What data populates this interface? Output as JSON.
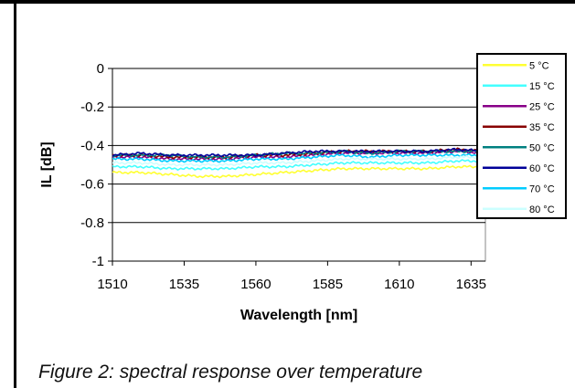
{
  "caption": "Figure 2: spectral response over  temperature",
  "chart_data": {
    "type": "line",
    "title": "",
    "xlabel": "Wavelength [nm]",
    "ylabel": "IL [dB]",
    "xlim": [
      1510,
      1640
    ],
    "ylim": [
      -1,
      0
    ],
    "xticks": [
      1510,
      1535,
      1560,
      1585,
      1610,
      1635
    ],
    "yticks": [
      0,
      -0.2,
      -0.4,
      -0.6,
      -0.8,
      -1
    ],
    "ytick_labels": [
      "0",
      "-0.2",
      "-0.4",
      "-0.6",
      "-0.8",
      "-1"
    ],
    "grid": "horizontal",
    "legend_position": "right",
    "x": [
      1510,
      1520,
      1530,
      1540,
      1550,
      1560,
      1570,
      1580,
      1590,
      1600,
      1610,
      1620,
      1630,
      1640
    ],
    "series": [
      {
        "name": "5 °C",
        "color": "#ffff33",
        "values": [
          -0.54,
          -0.54,
          -0.55,
          -0.56,
          -0.56,
          -0.55,
          -0.54,
          -0.53,
          -0.52,
          -0.52,
          -0.52,
          -0.52,
          -0.51,
          -0.51
        ]
      },
      {
        "name": "15 °C",
        "color": "#44ffff",
        "values": [
          -0.51,
          -0.51,
          -0.52,
          -0.52,
          -0.52,
          -0.51,
          -0.51,
          -0.5,
          -0.49,
          -0.49,
          -0.49,
          -0.49,
          -0.48,
          -0.48
        ]
      },
      {
        "name": "25 °C",
        "color": "#880088",
        "values": [
          -0.46,
          -0.46,
          -0.47,
          -0.47,
          -0.47,
          -0.46,
          -0.46,
          -0.45,
          -0.44,
          -0.44,
          -0.44,
          -0.44,
          -0.43,
          -0.44
        ]
      },
      {
        "name": "35 °C",
        "color": "#880000",
        "values": [
          -0.45,
          -0.45,
          -0.46,
          -0.46,
          -0.46,
          -0.45,
          -0.45,
          -0.44,
          -0.43,
          -0.43,
          -0.43,
          -0.43,
          -0.42,
          -0.43
        ]
      },
      {
        "name": "50 °C",
        "color": "#008080",
        "values": [
          -0.45,
          -0.45,
          -0.45,
          -0.46,
          -0.46,
          -0.45,
          -0.44,
          -0.44,
          -0.43,
          -0.44,
          -0.43,
          -0.43,
          -0.43,
          -0.43
        ]
      },
      {
        "name": "60 °C",
        "color": "#000099",
        "values": [
          -0.45,
          -0.44,
          -0.45,
          -0.45,
          -0.45,
          -0.45,
          -0.44,
          -0.43,
          -0.43,
          -0.43,
          -0.43,
          -0.43,
          -0.42,
          -0.43
        ]
      },
      {
        "name": "70 °C",
        "color": "#00ccff",
        "values": [
          -0.47,
          -0.47,
          -0.48,
          -0.48,
          -0.48,
          -0.47,
          -0.47,
          -0.46,
          -0.45,
          -0.46,
          -0.45,
          -0.45,
          -0.45,
          -0.45
        ]
      },
      {
        "name": "80 °C",
        "color": "#ccffff",
        "values": [
          -0.49,
          -0.49,
          -0.5,
          -0.5,
          -0.5,
          -0.49,
          -0.49,
          -0.48,
          -0.47,
          -0.47,
          -0.47,
          -0.47,
          -0.46,
          -0.46
        ]
      }
    ]
  }
}
